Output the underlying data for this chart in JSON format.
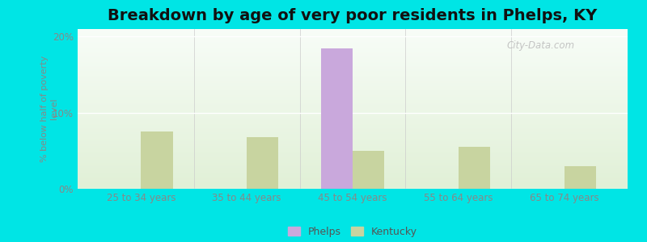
{
  "title": "Breakdown by age of very poor residents in Phelps, KY",
  "categories": [
    "25 to 34 years",
    "35 to 44 years",
    "45 to 54 years",
    "55 to 64 years",
    "65 to 74 years"
  ],
  "phelps_values": [
    0,
    0,
    18.5,
    0,
    0
  ],
  "kentucky_values": [
    7.5,
    6.8,
    5.0,
    5.5,
    3.0
  ],
  "phelps_color": "#c9a8dc",
  "kentucky_color": "#c8d4a0",
  "background_color": "#00e5e5",
  "ylabel": "% below half of poverty\nlevel",
  "ylim": [
    0,
    21
  ],
  "yticks": [
    0,
    10,
    20
  ],
  "ytick_labels": [
    "0%",
    "10%",
    "20%"
  ],
  "title_fontsize": 14,
  "bar_width": 0.3,
  "legend_labels": [
    "Phelps",
    "Kentucky"
  ],
  "watermark": "City-Data.com",
  "tick_color": "#888888",
  "grid_color": "#dddddd"
}
